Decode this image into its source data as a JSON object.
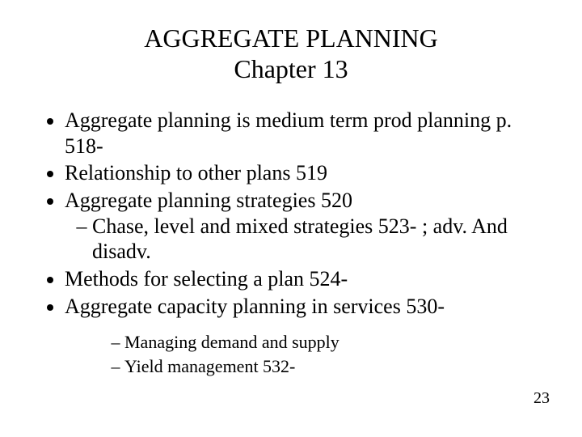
{
  "colors": {
    "background": "#ffffff",
    "text": "#000000"
  },
  "typography": {
    "family": "Times New Roman",
    "title_fontsize": 32,
    "body_fontsize": 26,
    "sublist_small_fontsize": 22,
    "pagenum_fontsize": 20
  },
  "title": {
    "line1": "AGGREGATE PLANNING",
    "line2": "Chapter 13"
  },
  "bullets": [
    {
      "text_parts": [
        "Aggregate planning is medium term prod planning p. 518-"
      ]
    },
    {
      "text_parts": [
        "Relationship to other plans  519"
      ]
    },
    {
      "text_parts": [
        "Aggregate planning strategies  520"
      ],
      "sub": [
        "Chase, level and mixed strategies 523- ; adv. And disadv."
      ]
    },
    {
      "text_parts": [
        "Methods for selecting a plan 524-"
      ]
    },
    {
      "text_parts": [
        "Aggregate capacity planning in services 530-"
      ]
    }
  ],
  "footer_sub": [
    "Managing demand and supply",
    "Yield management 532-"
  ],
  "page_number": "23"
}
